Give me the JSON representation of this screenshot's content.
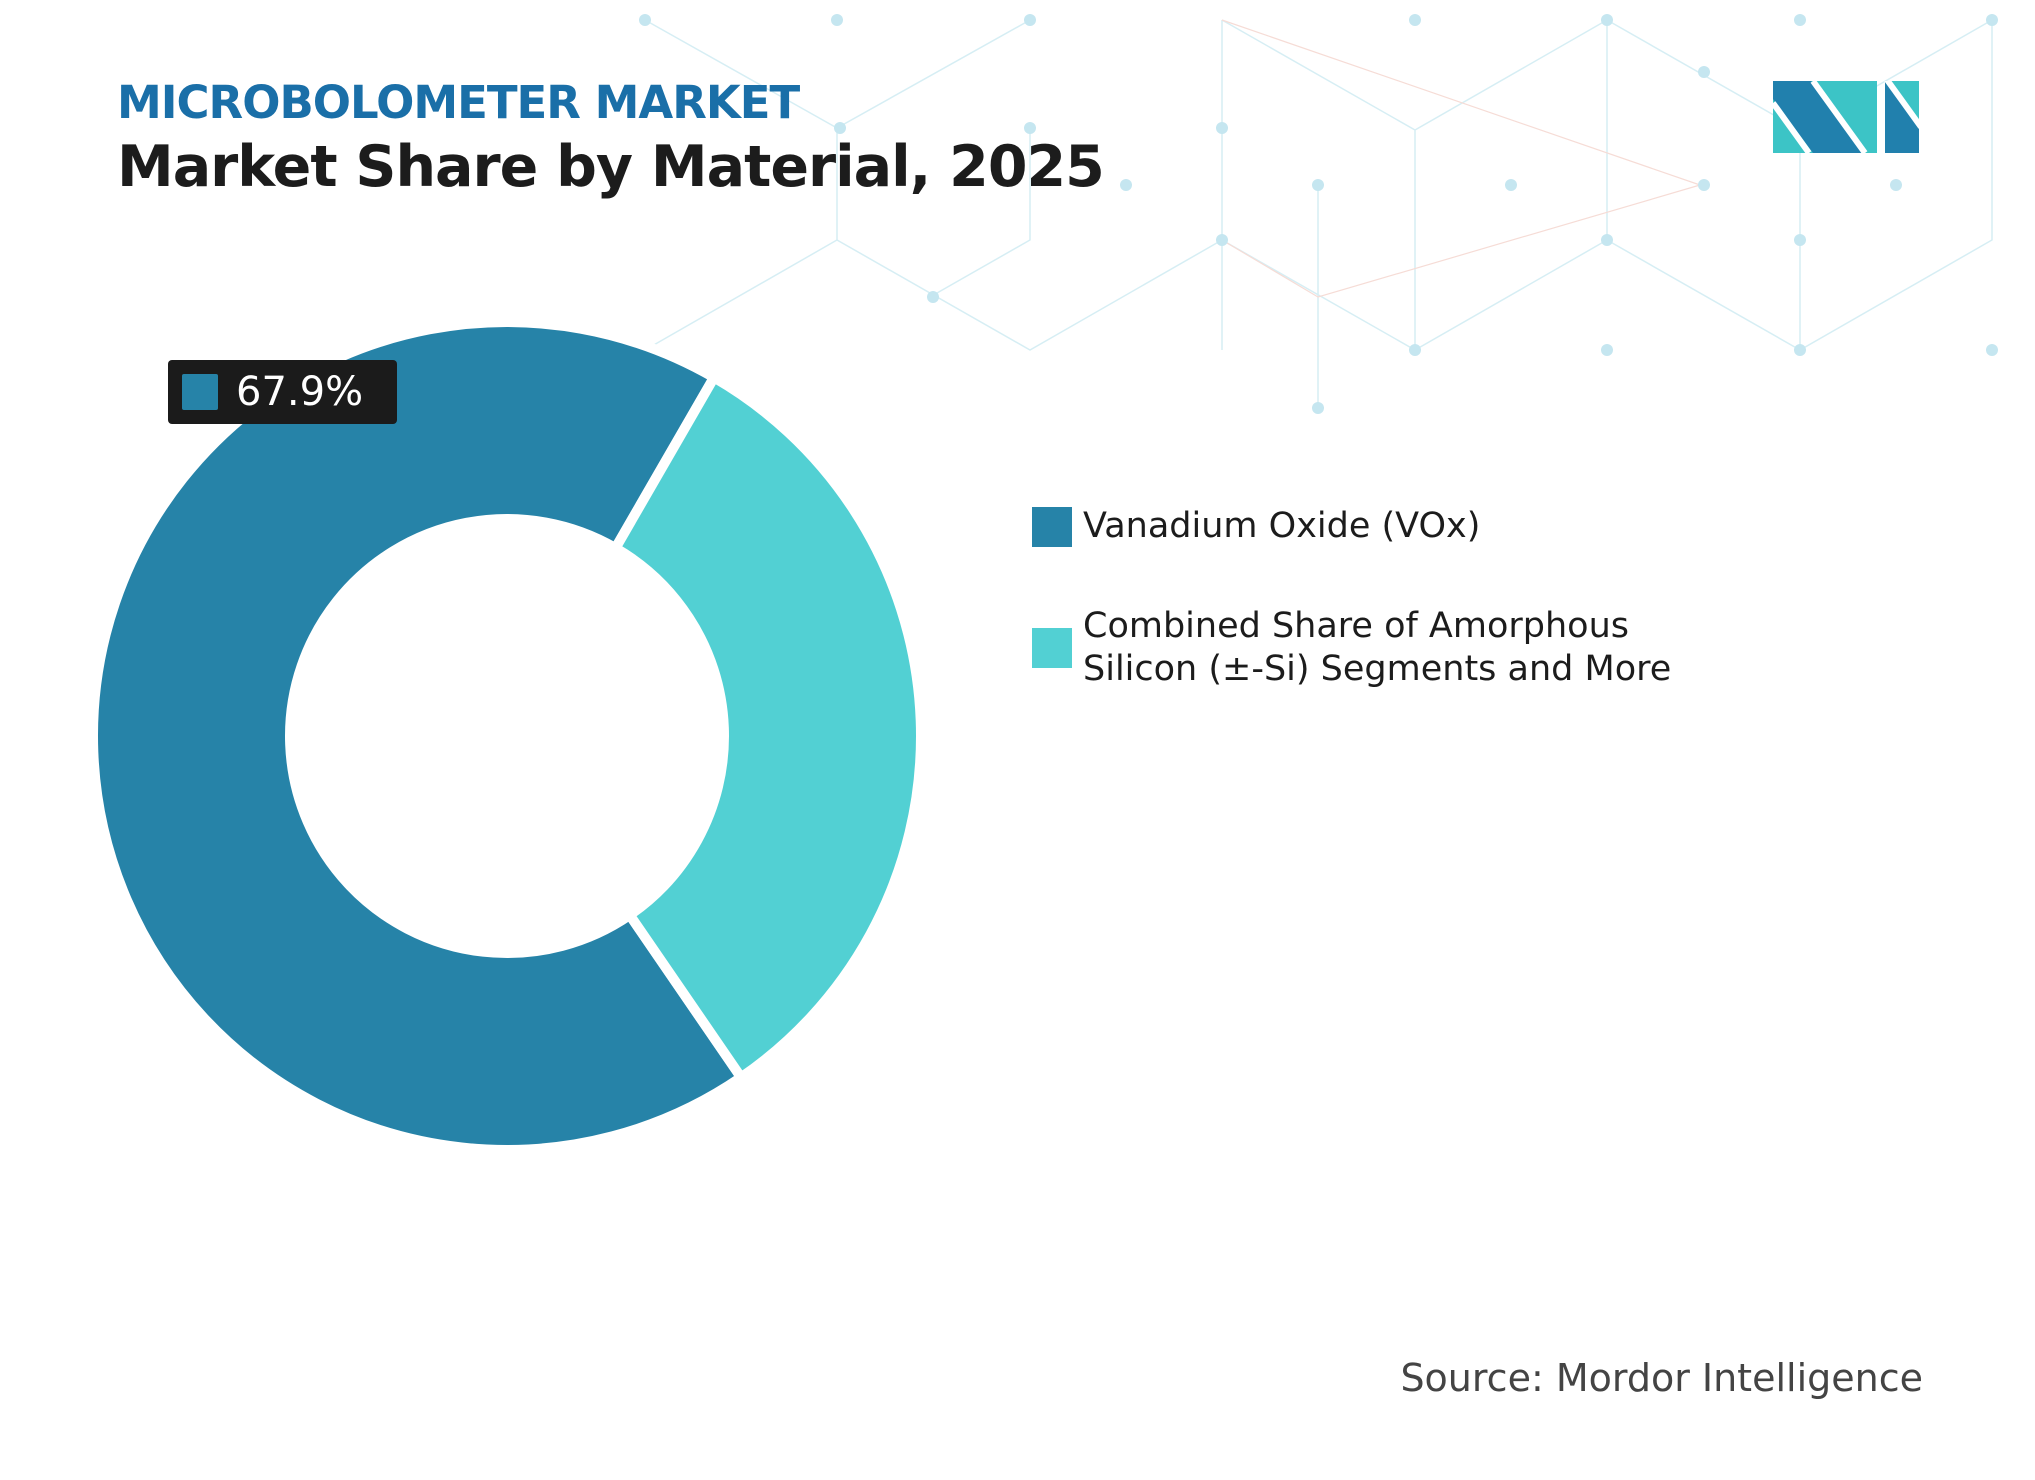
{
  "header": {
    "kicker": "MICROBOLOMETER MARKET",
    "title": "Market Share by Material, 2025"
  },
  "chart_data": {
    "type": "pie",
    "variant": "donut",
    "categories": [
      "Vanadium Oxide (VOx)",
      "Combined Share of Amorphous Silicon (±-Si) Segments and More"
    ],
    "values": [
      67.9,
      32.1
    ],
    "colors": [
      "#2683a8",
      "#52d0d3"
    ],
    "data_labels": [
      "67.9%"
    ],
    "legend": "right"
  },
  "source": "Source: Mordor Intelligence",
  "logo": {
    "text": "MN",
    "colors": [
      "#2180ad",
      "#3cc4c6"
    ]
  }
}
